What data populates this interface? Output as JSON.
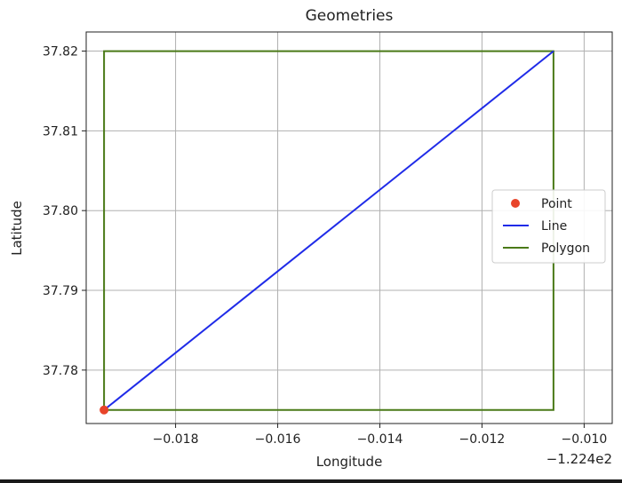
{
  "chart_data": {
    "type": "line",
    "title": "Geometries",
    "xlabel": "Longitude",
    "ylabel": "Latitude",
    "x_offset_label": "−1.224e2",
    "xlim": [
      -0.01975,
      -0.00945
    ],
    "ylim": [
      37.7733,
      37.8224
    ],
    "x_ticks": [
      -0.018,
      -0.016,
      -0.014,
      -0.012,
      -0.01
    ],
    "x_tick_labels": [
      "−0.018",
      "−0.016",
      "−0.014",
      "−0.012",
      "−0.010"
    ],
    "y_ticks": [
      37.78,
      37.79,
      37.8,
      37.81,
      37.82
    ],
    "y_tick_labels": [
      "37.78",
      "37.79",
      "37.80",
      "37.81",
      "37.82"
    ],
    "grid": true,
    "legend_position": "center-right",
    "series": [
      {
        "name": "Point",
        "kind": "scatter",
        "color": "#e8442a",
        "points": [
          [
            -0.0194,
            37.775
          ]
        ]
      },
      {
        "name": "Line",
        "kind": "line",
        "color": "#1f2be8",
        "points": [
          [
            -0.0194,
            37.775
          ],
          [
            -0.0106,
            37.82
          ]
        ]
      },
      {
        "name": "Polygon",
        "kind": "polygon",
        "color": "#4a7a18",
        "points": [
          [
            -0.0194,
            37.775
          ],
          [
            -0.0106,
            37.775
          ],
          [
            -0.0106,
            37.82
          ],
          [
            -0.0194,
            37.82
          ],
          [
            -0.0194,
            37.775
          ]
        ]
      }
    ]
  }
}
